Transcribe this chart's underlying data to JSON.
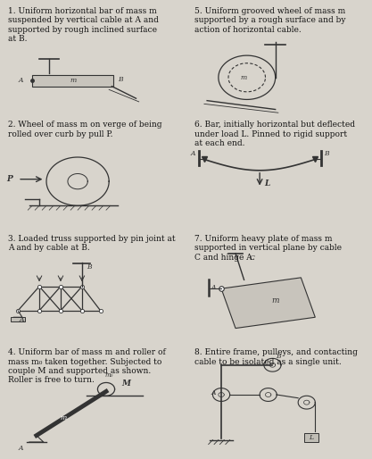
{
  "bg_color": "#d8d4cc",
  "grid_color": "#888888",
  "line_color": "#333333",
  "text_color": "#111111",
  "title_fontsize": 6.5,
  "label_fontsize": 5.5,
  "panels": [
    {
      "num": "1.",
      "title": "Uniform horizontal bar of mass m\nsuspended by vertical cable at A and\nsupported by rough inclined surface\nat B."
    },
    {
      "num": "5.",
      "title": "Uniform grooved wheel of mass m\nsupported by a rough surface and by\naction of horizontal cable."
    },
    {
      "num": "2.",
      "title": "Wheel of mass m on verge of being\nrolled over curb by pull P."
    },
    {
      "num": "6.",
      "title": "Bar, initially horizontal but deflected\nunder load L. Pinned to rigid support\nat each end."
    },
    {
      "num": "3.",
      "title": "Loaded truss supported by pin joint at\nA and by cable at B."
    },
    {
      "num": "7.",
      "title": "Uniform heavy plate of mass m\nsupported in vertical plane by cable\nC and hinge A."
    },
    {
      "num": "4.",
      "title": "Uniform bar of mass m and roller of\nmass m₀ taken together. Subjected to\ncouple M and supported as shown.\nRoller is free to turn."
    },
    {
      "num": "8.",
      "title": "Entire frame, pulleys, and contacting\ncable to be isolated as a single unit."
    }
  ]
}
